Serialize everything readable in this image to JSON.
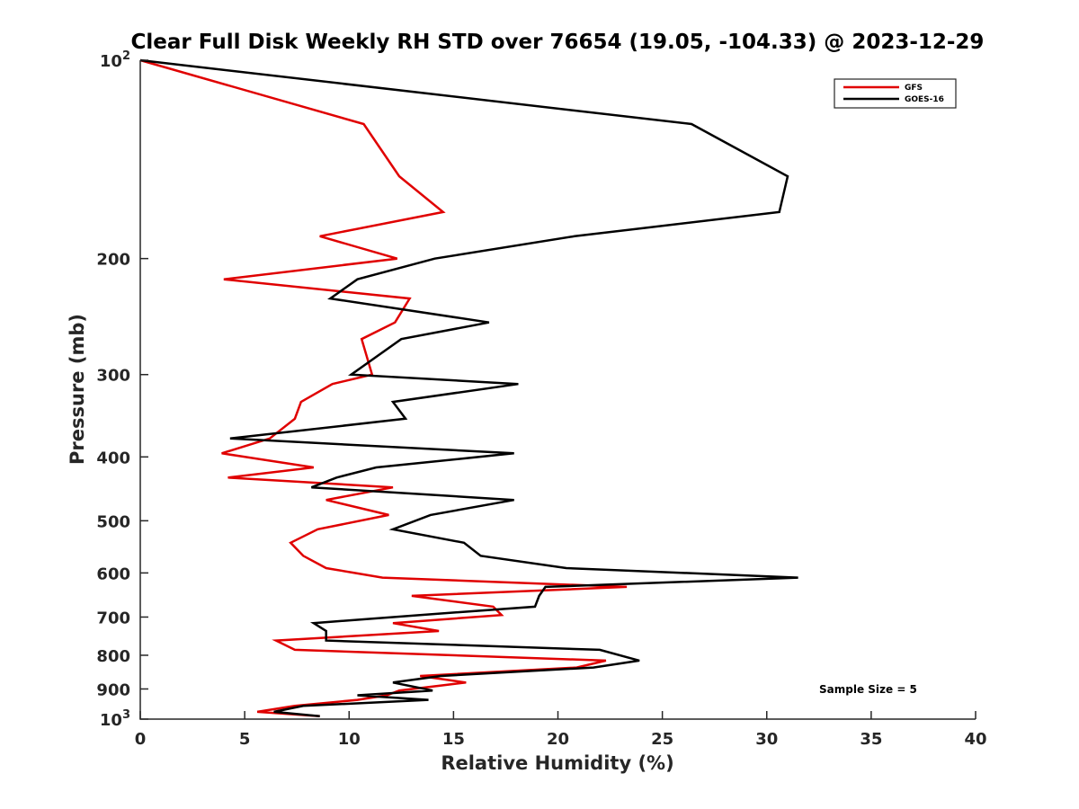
{
  "chart_data": {
    "type": "line",
    "title": "Clear Full Disk Weekly RH STD over 76654 (19.05, -104.33) @ 2023-12-29",
    "xlabel": "Relative Humidity (%)",
    "ylabel": "Pressure (mb)",
    "xlim": [
      0,
      40
    ],
    "ylim": [
      100,
      1000
    ],
    "y_scale": "log",
    "y_reversed": true,
    "x_ticks": [
      "0",
      "5",
      "10",
      "15",
      "20",
      "25",
      "30",
      "35",
      "40"
    ],
    "x_tick_values": [
      0,
      5,
      10,
      15,
      20,
      25,
      30,
      35,
      40
    ],
    "y_ticks": [
      {
        "value": 100,
        "base": "10",
        "exp": "2"
      },
      {
        "value": 200,
        "label": "200"
      },
      {
        "value": 300,
        "label": "300"
      },
      {
        "value": 400,
        "label": "400"
      },
      {
        "value": 500,
        "label": "500"
      },
      {
        "value": 600,
        "label": "600"
      },
      {
        "value": 700,
        "label": "700"
      },
      {
        "value": 800,
        "label": "800"
      },
      {
        "value": 900,
        "label": "900"
      },
      {
        "value": 1000,
        "base": "10",
        "exp": "3"
      }
    ],
    "legend_position": "top-right",
    "annotation": "Sample Size = 5",
    "series": [
      {
        "name": "GFS",
        "color": "#e00000",
        "points": [
          [
            0.0,
            100
          ],
          [
            10.7,
            125
          ],
          [
            12.4,
            150
          ],
          [
            14.5,
            170
          ],
          [
            8.6,
            185
          ],
          [
            12.3,
            200
          ],
          [
            4.0,
            215
          ],
          [
            12.9,
            230
          ],
          [
            12.2,
            250
          ],
          [
            10.6,
            265
          ],
          [
            11.1,
            300
          ],
          [
            9.2,
            310
          ],
          [
            7.7,
            330
          ],
          [
            7.4,
            350
          ],
          [
            6.2,
            375
          ],
          [
            3.9,
            395
          ],
          [
            8.3,
            415
          ],
          [
            4.2,
            430
          ],
          [
            12.1,
            445
          ],
          [
            8.9,
            465
          ],
          [
            11.9,
            490
          ],
          [
            8.5,
            515
          ],
          [
            7.2,
            540
          ],
          [
            7.8,
            565
          ],
          [
            8.9,
            590
          ],
          [
            11.6,
            610
          ],
          [
            23.3,
            630
          ],
          [
            13.0,
            650
          ],
          [
            16.9,
            675
          ],
          [
            17.3,
            695
          ],
          [
            12.1,
            715
          ],
          [
            14.3,
            735
          ],
          [
            6.5,
            760
          ],
          [
            7.4,
            785
          ],
          [
            22.3,
            815
          ],
          [
            20.9,
            835
          ],
          [
            13.4,
            860
          ],
          [
            15.6,
            880
          ],
          [
            12.4,
            905
          ],
          [
            11.8,
            920
          ],
          [
            10.4,
            935
          ],
          [
            7.4,
            955
          ],
          [
            5.6,
            975
          ],
          [
            8.6,
            990
          ]
        ]
      },
      {
        "name": "GOES-16",
        "color": "#000000",
        "points": [
          [
            0.0,
            100
          ],
          [
            26.4,
            125
          ],
          [
            31.0,
            150
          ],
          [
            30.6,
            170
          ],
          [
            20.8,
            185
          ],
          [
            14.1,
            200
          ],
          [
            10.4,
            215
          ],
          [
            9.1,
            230
          ],
          [
            16.7,
            250
          ],
          [
            12.5,
            265
          ],
          [
            10.1,
            300
          ],
          [
            18.1,
            310
          ],
          [
            12.1,
            330
          ],
          [
            12.7,
            350
          ],
          [
            4.3,
            375
          ],
          [
            17.9,
            395
          ],
          [
            11.3,
            415
          ],
          [
            9.4,
            430
          ],
          [
            8.2,
            445
          ],
          [
            17.9,
            465
          ],
          [
            13.9,
            490
          ],
          [
            12.1,
            515
          ],
          [
            15.5,
            540
          ],
          [
            16.3,
            565
          ],
          [
            20.4,
            590
          ],
          [
            31.5,
            610
          ],
          [
            19.4,
            630
          ],
          [
            19.1,
            650
          ],
          [
            18.9,
            675
          ],
          [
            13.4,
            695
          ],
          [
            8.3,
            715
          ],
          [
            8.9,
            735
          ],
          [
            8.9,
            760
          ],
          [
            22.0,
            785
          ],
          [
            23.9,
            815
          ],
          [
            21.7,
            835
          ],
          [
            14.4,
            860
          ],
          [
            12.1,
            880
          ],
          [
            14.0,
            905
          ],
          [
            10.4,
            920
          ],
          [
            13.8,
            935
          ],
          [
            7.8,
            955
          ],
          [
            6.4,
            975
          ],
          [
            8.6,
            990
          ]
        ]
      }
    ]
  }
}
